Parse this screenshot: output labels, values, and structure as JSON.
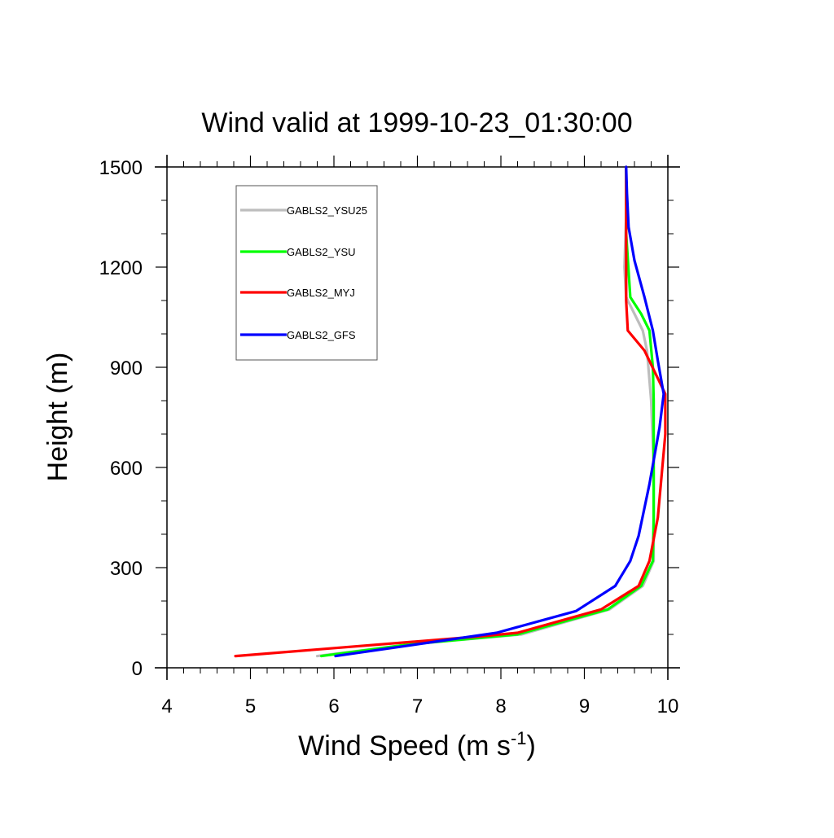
{
  "chart_data": {
    "type": "line",
    "title": "Wind valid at 1999-10-23_01:30:00",
    "xlabel": "Wind Speed (m s",
    "xlabel_superscript": "-1",
    "xlabel_suffix": ")",
    "ylabel": "Height (m)",
    "xlim": [
      4,
      10
    ],
    "ylim": [
      0,
      1500
    ],
    "xticks": [
      4,
      5,
      6,
      7,
      8,
      9,
      10
    ],
    "yticks": [
      0,
      300,
      600,
      900,
      1200,
      1500
    ],
    "grid": false,
    "legend_position": "top-left",
    "series": [
      {
        "name": "GABLS2_YSU25",
        "color": "#bdbdbd",
        "x": [
          5.8,
          6.9,
          8.25,
          9.3,
          9.7,
          9.83,
          9.83,
          9.83,
          9.8,
          9.75,
          9.7,
          9.6,
          9.5,
          9.48,
          9.5,
          9.5
        ],
        "y": [
          35,
          70,
          100,
          175,
          245,
          320,
          450,
          600,
          800,
          950,
          1010,
          1060,
          1110,
          1200,
          1350,
          1500
        ]
      },
      {
        "name": "GABLS2_YSU",
        "color": "#00ff00",
        "x": [
          5.85,
          6.9,
          8.2,
          9.28,
          9.68,
          9.82,
          9.83,
          9.83,
          9.83,
          9.82,
          9.78,
          9.68,
          9.55,
          9.5,
          9.5
        ],
        "y": [
          35,
          70,
          100,
          175,
          245,
          320,
          450,
          600,
          800,
          900,
          1010,
          1060,
          1110,
          1300,
          1500
        ]
      },
      {
        "name": "GABLS2_MYJ",
        "color": "#ff0000",
        "x": [
          4.82,
          7.8,
          8.2,
          9.2,
          9.65,
          9.78,
          9.88,
          9.97,
          9.97,
          9.72,
          9.52,
          9.5,
          9.5
        ],
        "y": [
          35,
          95,
          105,
          175,
          245,
          320,
          450,
          700,
          820,
          950,
          1010,
          1100,
          1500
        ]
      },
      {
        "name": "GABLS2_GFS",
        "color": "#0000ff",
        "x": [
          6.02,
          7.95,
          8.9,
          9.37,
          9.55,
          9.65,
          9.78,
          9.9,
          9.95,
          9.88,
          9.82,
          9.72,
          9.6,
          9.53,
          9.51,
          9.5
        ],
        "y": [
          35,
          105,
          170,
          245,
          320,
          395,
          550,
          720,
          820,
          920,
          1010,
          1110,
          1220,
          1320,
          1420,
          1500
        ]
      }
    ]
  }
}
